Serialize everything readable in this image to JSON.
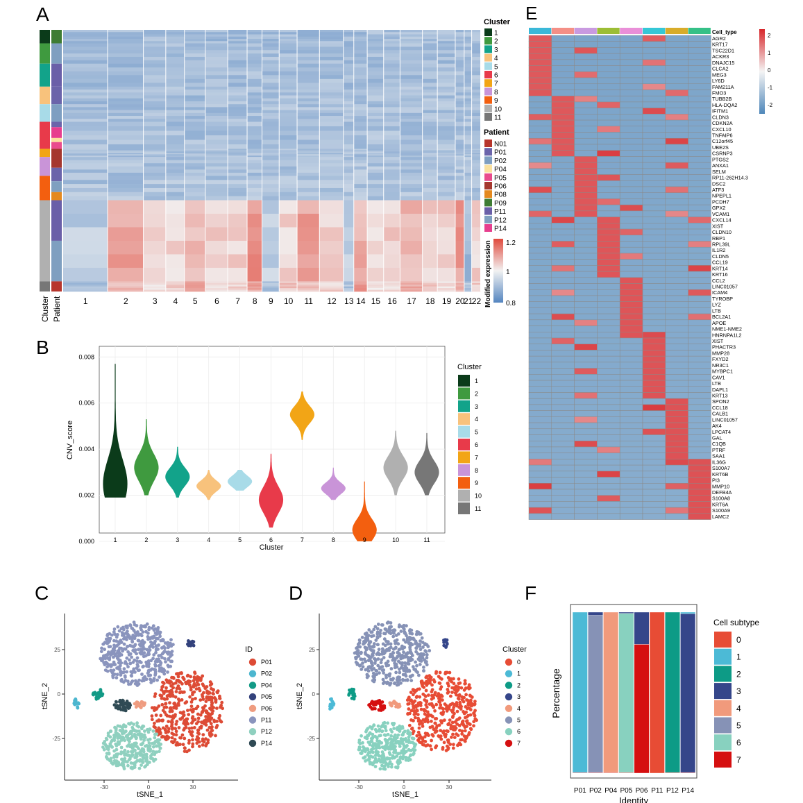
{
  "colors": {
    "cluster": [
      "#0b3b1a",
      "#3f9a3f",
      "#12a38a",
      "#f8c27c",
      "#a8dbe8",
      "#e83a4a",
      "#f2a516",
      "#c994d8",
      "#f35f0f",
      "#b0b0b0",
      "#777777"
    ],
    "patient": {
      "N01": "#b7352c",
      "P01": "#6b64aa",
      "P02": "#7e9ec1",
      "P04": "#fbe19e",
      "P05": "#e94b8d",
      "P06": "#a5372e",
      "P08": "#e4891f",
      "P09": "#3e7c33",
      "P11": "#6a5fa8",
      "P12": "#7f9fc0",
      "P14": "#e73e8e"
    },
    "tsne_id": {
      "P01": "#dd4b35",
      "P02": "#4cb6cf",
      "P04": "#129a86",
      "P05": "#33427c",
      "P06": "#ef9c80",
      "P11": "#8a94bd",
      "P12": "#8fd0bf",
      "P14": "#2f4a54"
    },
    "subtype": [
      "#e74c35",
      "#4cbad6",
      "#0d9b86",
      "#35468a",
      "#f19a7c",
      "#8692b6",
      "#88d1bf",
      "#d50f10"
    ],
    "heat_low": "#4f87ba",
    "heat_mid": "#f4f4f4",
    "heat_high": "#d7272b",
    "cnv_low": "#5485c0",
    "cnv_high": "#e04a3d"
  },
  "panels": {
    "A": {
      "label": "A",
      "row_labels": [
        "Cluster",
        "Patient"
      ],
      "chromosomes": [
        "1",
        "2",
        "3",
        "4",
        "5",
        "6",
        "7",
        "8",
        "9",
        "10",
        "11",
        "12",
        "13",
        "14",
        "15",
        "16",
        "17",
        "18",
        "19",
        "20",
        "21",
        "22"
      ],
      "legend_cluster_title": "Cluster",
      "legend_cluster": [
        "1",
        "2",
        "3",
        "4",
        "5",
        "6",
        "7",
        "8",
        "9",
        "10",
        "11"
      ],
      "legend_patient_title": "Patient",
      "legend_patient": [
        "N01",
        "P01",
        "P02",
        "P04",
        "P05",
        "P06",
        "P08",
        "P09",
        "P11",
        "P12",
        "P14"
      ],
      "colorbar_title": "Modified expression",
      "colorbar_ticks": [
        "1.2",
        "1",
        "0.8"
      ]
    },
    "B": {
      "label": "B",
      "chart_data": {
        "type": "violin",
        "categories": [
          "1",
          "2",
          "3",
          "4",
          "5",
          "6",
          "7",
          "8",
          "9",
          "10",
          "11"
        ],
        "medians": [
          0.0025,
          0.0032,
          0.0028,
          0.0024,
          0.0026,
          0.0018,
          0.0055,
          0.0023,
          0.0005,
          0.0032,
          0.003
        ],
        "ranges": [
          [
            0.0019,
            0.0077
          ],
          [
            0.002,
            0.0053
          ],
          [
            0.0019,
            0.0041
          ],
          [
            0.0018,
            0.0031
          ],
          [
            0.0022,
            0.0031
          ],
          [
            0.0006,
            0.0038
          ],
          [
            0.0044,
            0.0065
          ],
          [
            0.0018,
            0.0032
          ],
          [
            0.0,
            0.0026
          ],
          [
            0.002,
            0.0048
          ],
          [
            0.002,
            0.0047
          ]
        ],
        "ylim": [
          0,
          0.0081
        ],
        "yticks": [
          "0.000",
          "0.002",
          "0.004",
          "0.006",
          "0.008"
        ],
        "xlabel": "Cluster",
        "ylabel": "CNV_score",
        "legend_title": "Cluster",
        "legend": [
          "1",
          "2",
          "3",
          "4",
          "5",
          "6",
          "7",
          "8",
          "9",
          "10",
          "11"
        ]
      }
    },
    "C": {
      "label": "C",
      "chart_data": {
        "type": "scatter",
        "xlabel": "tSNE_1",
        "ylabel": "tSNE_2",
        "xticks": [
          "-30",
          "0",
          "30"
        ],
        "yticks": [
          "25",
          "0",
          "-25"
        ],
        "legend_title": "ID",
        "legend": [
          "P01",
          "P02",
          "P04",
          "P05",
          "P06",
          "P11",
          "P12",
          "P14"
        ]
      }
    },
    "D": {
      "label": "D",
      "chart_data": {
        "type": "scatter",
        "xlabel": "tSNE_1",
        "ylabel": "tSNE_2",
        "xticks": [
          "-30",
          "0",
          "30"
        ],
        "yticks": [
          "25",
          "0",
          "-25"
        ],
        "legend_title": "Cluster",
        "legend": [
          "0",
          "1",
          "2",
          "3",
          "4",
          "5",
          "6",
          "7"
        ]
      }
    },
    "E": {
      "label": "E",
      "column_header": "Cell_type",
      "column_colors": [
        "#3ab8d8",
        "#f48f86",
        "#c99ae0",
        "#9cbd35",
        "#e98fd8",
        "#35c7d6",
        "#d8ac2a",
        "#35c087"
      ],
      "genes": [
        "AGR2",
        "KRT17",
        "TSC22D1",
        "ACKR3",
        "DNAJC15",
        "CLCA2",
        "MEG3",
        "LY6D",
        "FAM211A",
        "FMO3",
        "TUBB2B",
        "HLA-DQA2",
        "IFITM1",
        "CLDN3",
        "CDKN2A",
        "CXCL10",
        "TNFAIP6",
        "C12orf45",
        "UBE2S",
        "CSRNP3",
        "PTGS2",
        "ANXA1",
        "SELM",
        "RP11-262H14.3",
        "DSC2",
        "ATF3",
        "NPEPL1",
        "PCDH7",
        "GPX2",
        "VCAM1",
        "CXCL14",
        "XIST",
        "CLDN10",
        "RBP1",
        "RPL39L",
        "IL1R2",
        "CLDN5",
        "CCL19",
        "KRT14",
        "KRT16",
        "CCL2",
        "LINC01057",
        "ICAM4",
        "TYROBP",
        "LYZ",
        "LTB",
        "BCL2A1",
        "APOE",
        "NME1-NME2",
        "HNRNPA1L2",
        "XIST",
        "PHACTR3",
        "MMP28",
        "FXYD2",
        "NR3C1",
        "MYBPC1",
        "CAV1",
        "LTB",
        "DAPL1",
        "KRT13",
        "SPON2",
        "CCL18",
        "CALB1",
        "LINC01057",
        "AK4",
        "LPCAT4",
        "GAL",
        "C1QB",
        "PTRF",
        "SAA1",
        "IL36G",
        "S100A7",
        "KRT6B",
        "PI3",
        "MMP10",
        "DEFB4A",
        "S100A8",
        "KRT6A",
        "S100A9",
        "LAMC2"
      ],
      "block_sizes": [
        10,
        10,
        10,
        10,
        10,
        10,
        10,
        10
      ],
      "colorbar_ticks": [
        "2",
        "1",
        "0",
        "-1",
        "-2"
      ]
    },
    "F": {
      "label": "F",
      "chart_data": {
        "type": "stacked-bar",
        "categories": [
          "P01",
          "P02",
          "P04",
          "P05",
          "P06",
          "P11",
          "P12",
          "P14"
        ],
        "series": [
          {
            "name": "0",
            "values": [
              0,
              0,
              0,
              0,
              0,
              100,
              0,
              0
            ]
          },
          {
            "name": "1",
            "values": [
              99.6,
              0,
              0,
              0,
              0,
              0,
              0,
              1
            ]
          },
          {
            "name": "2",
            "values": [
              0,
              0,
              0,
              0,
              0,
              0,
              99.6,
              0
            ]
          },
          {
            "name": "3",
            "values": [
              0,
              2,
              0,
              0.8,
              20,
              0,
              0,
              98.6
            ]
          },
          {
            "name": "4",
            "values": [
              0,
              0,
              99.6,
              0,
              0,
              0,
              0,
              0
            ]
          },
          {
            "name": "5",
            "values": [
              0,
              97.6,
              0,
              0,
              0,
              0,
              0,
              0
            ]
          },
          {
            "name": "6",
            "values": [
              0,
              0,
              0,
              98.8,
              0,
              0,
              0,
              0
            ]
          },
          {
            "name": "7",
            "values": [
              0.4,
              0.4,
              0.4,
              0.4,
              80,
              0,
              0.4,
              0.4
            ]
          }
        ],
        "xlabel": "Identity",
        "ylabel": "Percentage",
        "legend_title": "Cell subtype",
        "legend": [
          "0",
          "1",
          "2",
          "3",
          "4",
          "5",
          "6",
          "7"
        ]
      }
    }
  }
}
